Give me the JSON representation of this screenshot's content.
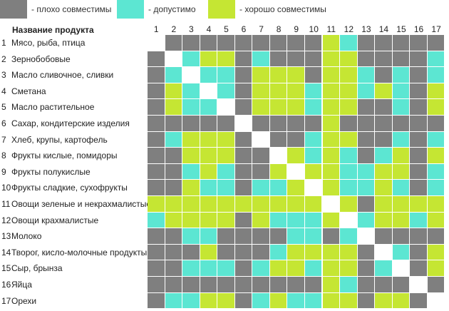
{
  "legend": [
    {
      "label": "- плохо совместимы",
      "color": "#7f7f7f"
    },
    {
      "label": "- допустимо",
      "color": "#5ce6d2"
    },
    {
      "label": "- хорошо совместимы",
      "color": "#c5e633"
    }
  ],
  "header": {
    "product_column_title": "Название продукта"
  },
  "colors": {
    "bad": "#7f7f7f",
    "ok": "#5ce6d2",
    "good": "#c5e633",
    "self": "#ffffff"
  },
  "chart_data": {
    "type": "heatmap",
    "title": "",
    "columns": [
      "1",
      "2",
      "3",
      "4",
      "5",
      "6",
      "7",
      "8",
      "9",
      "10",
      "11",
      "12",
      "13",
      "14",
      "15",
      "16",
      "17"
    ],
    "rows": [
      {
        "num": "1",
        "name": "Мясо, рыба, птица"
      },
      {
        "num": "2",
        "name": "Зернобобовые"
      },
      {
        "num": "3",
        "name": "Масло сливочное, сливки"
      },
      {
        "num": "4",
        "name": "Сметана"
      },
      {
        "num": "5",
        "name": "Масло растительное"
      },
      {
        "num": "6",
        "name": "Сахар, кондитерские изделия"
      },
      {
        "num": "7",
        "name": "Хлеб, крупы, картофель"
      },
      {
        "num": "8",
        "name": "Фрукты кислые, помидоры"
      },
      {
        "num": "9",
        "name": "Фрукты полукислые"
      },
      {
        "num": "10",
        "name": "Фрукты сладкие, сухофрукты"
      },
      {
        "num": "11",
        "name": "Овощи зеленые и некрахмалистые"
      },
      {
        "num": "12",
        "name": "Овощи крахмалистые"
      },
      {
        "num": "13",
        "name": "Молоко"
      },
      {
        "num": "14",
        "name": "Творог, кисло-молочные продукты"
      },
      {
        "num": "15",
        "name": "Сыр, брынза"
      },
      {
        "num": "16",
        "name": "Яйца"
      },
      {
        "num": "17",
        "name": "Орехи"
      }
    ],
    "legend_categories": [
      "bad",
      "ok",
      "good"
    ],
    "matrix": [
      [
        "self",
        "bad",
        "bad",
        "bad",
        "bad",
        "bad",
        "bad",
        "bad",
        "bad",
        "bad",
        "good",
        "ok",
        "bad",
        "bad",
        "bad",
        "bad",
        "bad"
      ],
      [
        "bad",
        "self",
        "ok",
        "good",
        "good",
        "bad",
        "ok",
        "bad",
        "bad",
        "bad",
        "good",
        "good",
        "bad",
        "bad",
        "bad",
        "bad",
        "ok"
      ],
      [
        "bad",
        "ok",
        "self",
        "ok",
        "ok",
        "bad",
        "good",
        "good",
        "good",
        "bad",
        "good",
        "good",
        "ok",
        "bad",
        "ok",
        "bad",
        "ok"
      ],
      [
        "bad",
        "good",
        "ok",
        "self",
        "ok",
        "bad",
        "good",
        "good",
        "good",
        "ok",
        "good",
        "good",
        "ok",
        "good",
        "ok",
        "bad",
        "good"
      ],
      [
        "bad",
        "good",
        "ok",
        "ok",
        "self",
        "bad",
        "good",
        "good",
        "good",
        "ok",
        "good",
        "good",
        "bad",
        "bad",
        "ok",
        "bad",
        "good"
      ],
      [
        "bad",
        "bad",
        "bad",
        "bad",
        "bad",
        "self",
        "bad",
        "bad",
        "bad",
        "bad",
        "good",
        "bad",
        "bad",
        "bad",
        "bad",
        "bad",
        "bad"
      ],
      [
        "bad",
        "ok",
        "good",
        "good",
        "good",
        "bad",
        "self",
        "bad",
        "bad",
        "ok",
        "good",
        "good",
        "bad",
        "bad",
        "ok",
        "bad",
        "ok"
      ],
      [
        "bad",
        "bad",
        "good",
        "good",
        "good",
        "bad",
        "bad",
        "self",
        "good",
        "ok",
        "good",
        "ok",
        "bad",
        "ok",
        "good",
        "bad",
        "good"
      ],
      [
        "bad",
        "bad",
        "ok",
        "good",
        "ok",
        "bad",
        "bad",
        "good",
        "self",
        "good",
        "good",
        "ok",
        "ok",
        "good",
        "good",
        "bad",
        "ok"
      ],
      [
        "bad",
        "bad",
        "good",
        "ok",
        "ok",
        "bad",
        "ok",
        "ok",
        "good",
        "self",
        "good",
        "ok",
        "ok",
        "good",
        "ok",
        "bad",
        "ok"
      ],
      [
        "good",
        "good",
        "good",
        "good",
        "good",
        "good",
        "good",
        "good",
        "good",
        "good",
        "self",
        "good",
        "bad",
        "good",
        "good",
        "good",
        "good"
      ],
      [
        "ok",
        "good",
        "good",
        "good",
        "good",
        "bad",
        "good",
        "ok",
        "ok",
        "ok",
        "good",
        "self",
        "ok",
        "good",
        "good",
        "ok",
        "good"
      ],
      [
        "bad",
        "bad",
        "ok",
        "ok",
        "bad",
        "bad",
        "bad",
        "bad",
        "ok",
        "ok",
        "bad",
        "ok",
        "self",
        "bad",
        "bad",
        "bad",
        "bad"
      ],
      [
        "bad",
        "bad",
        "bad",
        "good",
        "bad",
        "bad",
        "bad",
        "ok",
        "good",
        "good",
        "good",
        "good",
        "bad",
        "self",
        "ok",
        "bad",
        "good"
      ],
      [
        "bad",
        "bad",
        "ok",
        "ok",
        "ok",
        "bad",
        "ok",
        "good",
        "good",
        "ok",
        "good",
        "good",
        "bad",
        "ok",
        "self",
        "bad",
        "good"
      ],
      [
        "bad",
        "bad",
        "bad",
        "bad",
        "bad",
        "bad",
        "bad",
        "bad",
        "bad",
        "bad",
        "good",
        "ok",
        "bad",
        "bad",
        "bad",
        "self",
        "bad"
      ],
      [
        "bad",
        "ok",
        "ok",
        "good",
        "good",
        "bad",
        "ok",
        "good",
        "ok",
        "ok",
        "good",
        "good",
        "bad",
        "good",
        "good",
        "bad",
        "self"
      ]
    ]
  }
}
